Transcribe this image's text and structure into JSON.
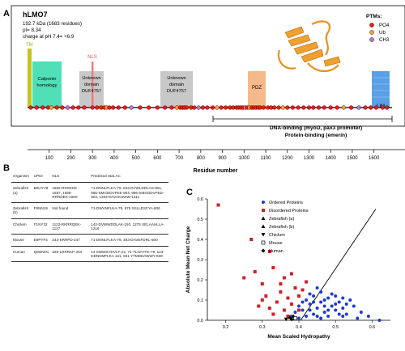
{
  "panelA": {
    "label": "A",
    "protein_name": "hLMO7",
    "info_lines": [
      "192.7 kDa (1683 residues)",
      "pI= 8.34",
      "charge at pH 7.4= +6.9"
    ],
    "ptm_title": "PTMs:",
    "ptms": [
      {
        "label": "PO4",
        "color": "#e0231c"
      },
      {
        "label": "Ub",
        "color": "#f1a33a"
      },
      {
        "label": "CH3",
        "color": "#b678d0"
      }
    ],
    "domains": [
      {
        "name": "TM",
        "color": "#c8c21e"
      },
      {
        "name": "Calponin homology",
        "color": "#4fe0b8"
      },
      {
        "name": "NLS",
        "color": "#f27a7a"
      },
      {
        "name": "Unknown domain DUF4757",
        "color": "#c8c8c8"
      },
      {
        "name": "Unknown domain DUF4757",
        "color": "#c8c8c8"
      },
      {
        "name": "PDZ",
        "color": "#f6b98a"
      },
      {
        "name": "LIM",
        "color": "#5aa0e6"
      }
    ],
    "bracket_lines": [
      "DNA-binding (myoD, pax3 promoter)",
      "Protein-binding (emerin)"
    ],
    "x_ticks": [
      "100",
      "200",
      "300",
      "400",
      "500",
      "600",
      "700",
      "800",
      "900",
      "1000",
      "1100",
      "1200",
      "1300",
      "1400",
      "1500",
      "1600"
    ],
    "x_label": "Residue number",
    "ptm_positions": [
      15,
      42,
      70,
      95,
      110,
      135,
      160,
      185,
      210,
      235,
      262,
      300,
      321,
      340,
      355,
      365,
      378,
      395,
      420,
      450,
      480,
      520,
      560,
      600,
      635,
      665,
      690,
      705,
      715,
      725,
      735,
      755,
      770,
      790,
      810,
      830,
      855,
      875,
      895,
      915,
      935,
      950,
      965,
      975,
      985,
      995,
      1005,
      1015,
      1025,
      1035,
      1045,
      1055,
      1065,
      1075,
      1090,
      1110,
      1125,
      1140,
      1160,
      1180,
      1200,
      1225,
      1250,
      1275,
      1300,
      1320,
      1345,
      1370,
      1400,
      1430,
      1460,
      1495,
      1530,
      1560,
      1585,
      1610,
      1640,
      1660
    ]
  },
  "panelB": {
    "label": "B",
    "headers": [
      "Organism",
      "UPID",
      "NLS",
      "Predicted Stat.AC"
    ],
    "rows": [
      {
        "organism": "Zebrafish (a)",
        "upid": "B0UYV8",
        "nls": "1582-RKRKKE - 1587, 1595-RRRDEK-1600",
        "pred": "71-DNNLFLKA-79, 843-DVWLDDLAS-851, 895-SMGDDVFEE-903, 996-SMGDDVFED-904, 1303-DAVAKSWW-1311"
      },
      {
        "organism": "Zebrafish (b)",
        "upid": "F6NN19",
        "nls": "Not found",
        "pred": "71-DWVNFLKA-79, 575 SSLLESFYA-806"
      },
      {
        "organism": "Chicken",
        "upid": "F1NY32",
        "nls": "1122-RKRRQEK-1127",
        "pred": "142-DVWWDDLAK-150, 1275 SELAAHLLA-1216"
      },
      {
        "organism": "Mouse",
        "upid": "E9PYF4",
        "nls": "243-KRRPD-247",
        "pred": "71-DNNLFLKA-79, 493-DAVEFDRL-500"
      },
      {
        "organism": "Human",
        "upid": "Q8WWI1",
        "nls": "328-LRRRKP 333",
        "pred": "14 SWWSYDVLF-22, 71-TLNAYFE-79, 123-DDNNMFLKA 131, 931 YTMDDAWWY-939"
      }
    ]
  },
  "panelC": {
    "label": "C",
    "chart_data": {
      "type": "scatter",
      "xlabel": "Mean Scaled Hydropathy",
      "ylabel": "Absolute Mean Net Charge",
      "xlim": [
        0.15,
        0.65
      ],
      "ylim": [
        0.0,
        0.6
      ],
      "x_ticks": [
        "0.2",
        "0.3",
        "0.4",
        "0.5",
        "0.6"
      ],
      "y_ticks": [
        "0.0",
        "0.1",
        "0.2",
        "0.3",
        "0.4",
        "0.5",
        "0.6"
      ],
      "boundary_line": {
        "x": [
          0.405,
          0.61
        ],
        "y": [
          0.0,
          0.55
        ]
      },
      "legend": [
        {
          "label": "Ordered Proteins",
          "marker": "circle",
          "color": "#1e3ccf"
        },
        {
          "label": "Disordered Proteins",
          "marker": "square",
          "color": "#d21f26"
        },
        {
          "label": "Zebrafish (a)",
          "marker": "triangle-up",
          "color": "#000000"
        },
        {
          "label": "Zebrafish (b)",
          "marker": "triangle-up",
          "color": "#000000"
        },
        {
          "label": "Chicken",
          "marker": "triangle-down",
          "color": "#000000"
        },
        {
          "label": "Mouse",
          "marker": "square-open",
          "color": "#000000"
        },
        {
          "label": "Human",
          "marker": "diamond",
          "color": "#000000"
        }
      ],
      "series": [
        {
          "name": "Ordered Proteins",
          "points": [
            [
              0.4,
              0.07
            ],
            [
              0.41,
              0.05
            ],
            [
              0.42,
              0.1
            ],
            [
              0.43,
              0.08
            ],
            [
              0.44,
              0.12
            ],
            [
              0.45,
              0.06
            ],
            [
              0.46,
              0.09
            ],
            [
              0.47,
              0.04
            ],
            [
              0.48,
              0.11
            ],
            [
              0.49,
              0.07
            ],
            [
              0.5,
              0.05
            ],
            [
              0.51,
              0.09
            ],
            [
              0.52,
              0.06
            ],
            [
              0.53,
              0.03
            ],
            [
              0.55,
              0.07
            ],
            [
              0.57,
              0.04
            ],
            [
              0.44,
              0.03
            ],
            [
              0.46,
              0.14
            ],
            [
              0.48,
              0.02
            ],
            [
              0.5,
              0.12
            ],
            [
              0.42,
              0.02
            ],
            [
              0.45,
              0.16
            ],
            [
              0.47,
              0.1
            ],
            [
              0.49,
              0.13
            ],
            [
              0.43,
              0.05
            ],
            [
              0.52,
              0.02
            ],
            [
              0.54,
              0.1
            ],
            [
              0.41,
              0.09
            ],
            [
              0.46,
              0.01
            ],
            [
              0.51,
              0.03
            ],
            [
              0.39,
              0.04
            ],
            [
              0.38,
              0.02
            ],
            [
              0.56,
              0.01
            ],
            [
              0.59,
              0.02
            ],
            [
              0.62,
              0.0
            ],
            [
              0.45,
              0.02
            ],
            [
              0.47,
              0.07
            ],
            [
              0.43,
              0.13
            ],
            [
              0.5,
              0.08
            ],
            [
              0.48,
              0.05
            ],
            [
              0.53,
              0.08
            ],
            [
              0.44,
              0.09
            ],
            [
              0.4,
              0.01
            ],
            [
              0.52,
              0.11
            ]
          ]
        },
        {
          "name": "Disordered Proteins",
          "points": [
            [
              0.18,
              0.57
            ],
            [
              0.27,
              0.4
            ],
            [
              0.28,
              0.24
            ],
            [
              0.3,
              0.18
            ],
            [
              0.25,
              0.21
            ],
            [
              0.32,
              0.34
            ],
            [
              0.33,
              0.26
            ],
            [
              0.36,
              0.21
            ],
            [
              0.38,
              0.23
            ],
            [
              0.35,
              0.14
            ],
            [
              0.31,
              0.12
            ],
            [
              0.34,
              0.09
            ],
            [
              0.37,
              0.11
            ],
            [
              0.39,
              0.16
            ],
            [
              0.4,
              0.12
            ],
            [
              0.36,
              0.05
            ],
            [
              0.33,
              0.03
            ],
            [
              0.29,
              0.07
            ],
            [
              0.41,
              0.15
            ],
            [
              0.42,
              0.19
            ],
            [
              0.38,
              0.08
            ],
            [
              0.35,
              0.18
            ],
            [
              0.32,
              0.06
            ],
            [
              0.37,
              0.02
            ],
            [
              0.3,
              0.1
            ],
            [
              0.4,
              0.05
            ]
          ]
        },
        {
          "name": "Zebrafish (a)",
          "points": [
            [
              0.375,
              0.015
            ]
          ]
        },
        {
          "name": "Zebrafish (b)",
          "points": [
            [
              0.385,
              0.02
            ]
          ]
        },
        {
          "name": "Chicken",
          "points": [
            [
              0.365,
              0.005
            ]
          ]
        },
        {
          "name": "Mouse",
          "points": [
            [
              0.39,
              0.01
            ]
          ]
        },
        {
          "name": "Human",
          "points": [
            [
              0.38,
              0.005
            ]
          ]
        }
      ]
    }
  }
}
